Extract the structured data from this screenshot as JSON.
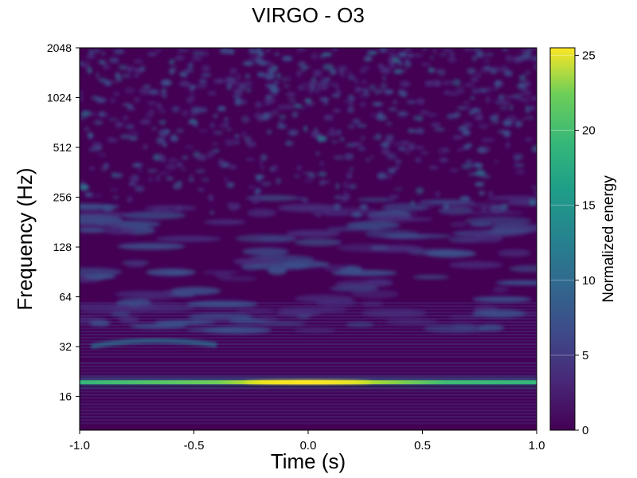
{
  "chart_data": {
    "type": "heatmap",
    "title": "VIRGO - O3",
    "xlabel": "Time (s)",
    "ylabel": "Frequency (Hz)",
    "xlim": [
      -1.0,
      1.0
    ],
    "ylim": [
      10,
      2048
    ],
    "yscale": "log2",
    "x_ticks": [
      -1.0,
      -0.5,
      0.0,
      0.5,
      1.0
    ],
    "x_tick_labels": [
      "-1.0",
      "-0.5",
      "0.0",
      "0.5",
      "1.0"
    ],
    "y_ticks": [
      16,
      32,
      64,
      128,
      256,
      512,
      1024,
      2048
    ],
    "y_tick_labels": [
      "16",
      "32",
      "64",
      "128",
      "256",
      "512",
      "1024",
      "2048"
    ],
    "colormap": "viridis",
    "colorbar": {
      "label": "Normalized energy",
      "range": [
        0,
        25.5
      ],
      "ticks": [
        0,
        5,
        10,
        15,
        20,
        25
      ],
      "tick_labels": [
        "0",
        "5",
        "10",
        "15",
        "20",
        "25"
      ]
    },
    "features": [
      {
        "description": "persistent narrow line",
        "frequency_hz": 19.5,
        "time_range_s": [
          -1.0,
          1.0
        ],
        "peak_energy": 25,
        "peak_time_s": 0.0
      },
      {
        "description": "faint arc",
        "frequency_hz": 35,
        "time_range_s": [
          -0.95,
          -0.4
        ],
        "energy": 9
      },
      {
        "description": "noise blobs",
        "frequency_range_hz": [
          256,
          2048
        ],
        "energy": 6
      }
    ]
  }
}
